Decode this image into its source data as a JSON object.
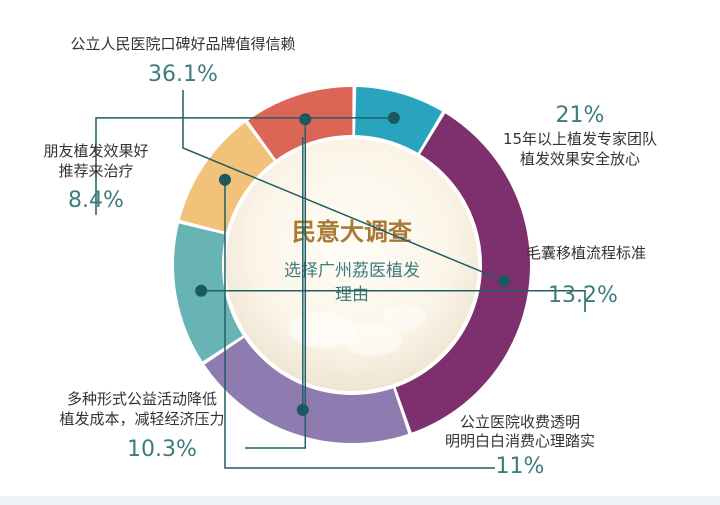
{
  "chart_data": {
    "type": "donut",
    "title": "民意大调查",
    "subtitle_lines": [
      "选择广州荔医植发",
      "理由"
    ],
    "slices": [
      {
        "name_lines": [
          "公立人民医院口碑好品牌值得信赖"
        ],
        "value": 36.1,
        "label": "36.1%",
        "color": "#7e2f6d"
      },
      {
        "name_lines": [
          "15年以上植发专家团队",
          "植发效果安全放心"
        ],
        "value": 21,
        "label": "21%",
        "color": "#8e7cb0"
      },
      {
        "name_lines": [
          "毛囊移植流程标准"
        ],
        "value": 13.2,
        "label": "13.2%",
        "color": "#68b3b4"
      },
      {
        "name_lines": [
          "公立医院收费透明",
          "明明白白消费心理踏实"
        ],
        "value": 11,
        "label": "11%",
        "color": "#f3c27a"
      },
      {
        "name_lines": [
          "多种形式公益活动降低",
          "植发成本，减轻经济压力"
        ],
        "value": 10.3,
        "label": "10.3%",
        "color": "#db6655"
      },
      {
        "name_lines": [
          "朋友植发效果好",
          "推荐来治疗"
        ],
        "value": 8.4,
        "label": "8.4%",
        "color": "#29a4be"
      }
    ]
  }
}
